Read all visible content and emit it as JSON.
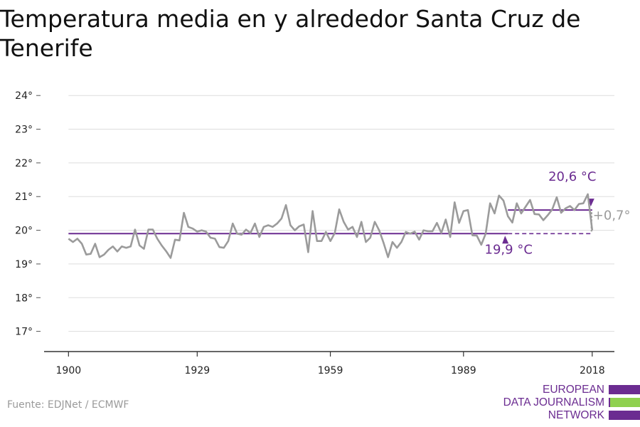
{
  "title": "Temperatura media en y alrededor Santa Cruz de Tenerife",
  "source": "Fuente: EDJNet / ECMWF",
  "logo": {
    "line1": "EUROPEAN",
    "line2": "DATA JOURNALISM",
    "line3": "NETWORK"
  },
  "colors": {
    "series": "#9b9b9b",
    "accent": "#6b2c91",
    "grid": "#dddddd",
    "text": "#222222",
    "logo_green": "#8fd14f"
  },
  "chart_data": {
    "type": "line",
    "title": "Temperatura media en y alrededor Santa Cruz de Tenerife",
    "xlabel": "",
    "ylabel": "",
    "x_ticks": [
      1900,
      1929,
      1959,
      1989,
      2018
    ],
    "y_ticks": [
      17,
      18,
      19,
      20,
      21,
      22,
      23,
      24
    ],
    "y_tick_labels": [
      "17°",
      "18°",
      "19°",
      "20°",
      "21°",
      "22°",
      "23°",
      "24°"
    ],
    "xlim": [
      1894.5,
      2023
    ],
    "ylim": [
      16.4,
      24.3
    ],
    "grid": true,
    "series": [
      {
        "color": "#9b9b9b",
        "x": [
          1900,
          1901,
          1902,
          1903,
          1904,
          1905,
          1906,
          1907,
          1908,
          1909,
          1910,
          1911,
          1912,
          1913,
          1914,
          1915,
          1916,
          1917,
          1918,
          1919,
          1920,
          1921,
          1922,
          1923,
          1924,
          1925,
          1926,
          1927,
          1928,
          1929,
          1930,
          1931,
          1932,
          1933,
          1934,
          1935,
          1936,
          1937,
          1938,
          1939,
          1940,
          1941,
          1942,
          1943,
          1944,
          1945,
          1946,
          1947,
          1948,
          1949,
          1950,
          1951,
          1952,
          1953,
          1954,
          1955,
          1956,
          1957,
          1958,
          1959,
          1960,
          1961,
          1962,
          1963,
          1964,
          1965,
          1966,
          1967,
          1968,
          1969,
          1970,
          1971,
          1972,
          1973,
          1974,
          1975,
          1976,
          1977,
          1978,
          1979,
          1980,
          1981,
          1982,
          1983,
          1984,
          1985,
          1986,
          1987,
          1988,
          1989,
          1990,
          1991,
          1992,
          1993,
          1994,
          1995,
          1996,
          1997,
          1998,
          1999,
          2000,
          2001,
          2002,
          2003,
          2004,
          2005,
          2006,
          2007,
          2008,
          2009,
          2010,
          2011,
          2012,
          2013,
          2014,
          2015,
          2016,
          2017,
          2018
        ],
        "y": [
          19.75,
          19.65,
          19.75,
          19.6,
          19.28,
          19.3,
          19.6,
          19.2,
          19.28,
          19.42,
          19.52,
          19.37,
          19.52,
          19.48,
          19.52,
          20.02,
          19.55,
          19.45,
          20.02,
          20.02,
          19.75,
          19.55,
          19.38,
          19.18,
          19.72,
          19.7,
          20.52,
          20.1,
          20.05,
          19.96,
          20.0,
          19.96,
          19.78,
          19.75,
          19.5,
          19.48,
          19.68,
          20.2,
          19.9,
          19.87,
          20.02,
          19.92,
          20.2,
          19.8,
          20.1,
          20.15,
          20.1,
          20.2,
          20.35,
          20.75,
          20.15,
          20.0,
          20.12,
          20.17,
          19.35,
          20.57,
          19.68,
          19.68,
          19.95,
          19.68,
          19.92,
          20.62,
          20.25,
          20.02,
          20.1,
          19.8,
          20.25,
          19.65,
          19.78,
          20.25,
          20.0,
          19.62,
          19.2,
          19.65,
          19.48,
          19.65,
          19.95,
          19.9,
          19.96,
          19.72,
          20.0,
          19.97,
          19.97,
          20.22,
          19.92,
          20.32,
          19.8,
          20.83,
          20.22,
          20.57,
          20.6,
          19.85,
          19.84,
          19.57,
          19.9,
          20.8,
          20.5,
          21.03,
          20.88,
          20.42,
          20.23,
          20.8,
          20.5,
          20.7,
          20.9,
          20.48,
          20.47,
          20.3,
          20.45,
          20.62,
          20.98,
          20.52,
          20.65,
          20.72,
          20.6,
          20.78,
          20.8,
          21.07,
          20.0
        ]
      }
    ],
    "reference_lines": [
      {
        "label": "19,9 °C",
        "value": 19.9,
        "from": 1900,
        "to": 2018
      },
      {
        "label": "20,6 °C",
        "value": 20.6,
        "from": 1999,
        "to": 2018
      }
    ],
    "annotations": [
      {
        "text": "20,6 °C"
      },
      {
        "text": "19,9 °C"
      },
      {
        "text": "+0,7°"
      }
    ]
  }
}
